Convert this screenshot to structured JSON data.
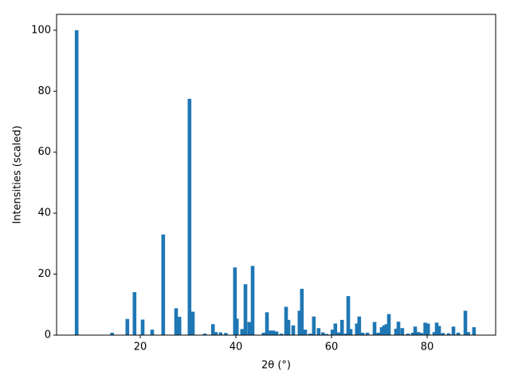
{
  "chart_data": {
    "type": "bar",
    "xlabel": "2θ (°)",
    "ylabel": "Intensities (scaled)",
    "color": "#1f77b4",
    "x": [
      6.7,
      14.1,
      17.3,
      18.8,
      20.5,
      22.5,
      24.8,
      27.5,
      28.2,
      30.3,
      31.0,
      33.5,
      35.2,
      35.8,
      36.8,
      37.9,
      39.8,
      40.2,
      41.3,
      42.0,
      42.8,
      43.5,
      45.8,
      46.5,
      47.2,
      47.8,
      48.5,
      49.5,
      50.5,
      51.0,
      52.0,
      53.3,
      53.8,
      54.5,
      55.5,
      56.3,
      57.3,
      58.2,
      59.0,
      60.2,
      60.8,
      61.5,
      62.2,
      63.0,
      63.5,
      64.0,
      65.3,
      65.8,
      66.5,
      67.5,
      69.0,
      69.8,
      70.5,
      71.0,
      71.5,
      72.0,
      73.5,
      74.0,
      74.8,
      76.0,
      77.0,
      77.5,
      78.2,
      78.8,
      79.6,
      80.2,
      81.5,
      82.0,
      82.5,
      83.3,
      84.5,
      85.5,
      86.5,
      88.0,
      88.6,
      89.8
    ],
    "values": [
      100,
      0.8,
      5.3,
      14.1,
      5.1,
      1.8,
      33,
      8.8,
      6,
      77.5,
      7.7,
      0.5,
      3.6,
      1,
      0.9,
      0.7,
      22.2,
      5.4,
      2,
      16.7,
      4.3,
      22.7,
      0.8,
      7.5,
      1.5,
      1.5,
      1.2,
      0.5,
      9.3,
      5,
      3.2,
      8,
      15.2,
      1.8,
      0.5,
      6.1,
      2.3,
      0.9,
      0.4,
      1.8,
      3.8,
      0.9,
      5,
      0.5,
      12.8,
      2,
      3.8,
      6.1,
      0.8,
      0.8,
      4.3,
      0.8,
      2.6,
      3.2,
      3.6,
      6.9,
      2.1,
      4.4,
      2.3,
      0.5,
      0.8,
      2.8,
      1,
      0.7,
      4.1,
      3.8,
      1,
      4.1,
      3,
      0.7,
      0.6,
      2.8,
      0.8,
      8,
      1,
      2.6
    ],
    "xlim": [
      2.5,
      94.33
    ],
    "ylim": [
      0,
      105.2
    ],
    "xticks": [
      20,
      40,
      60,
      80
    ],
    "yticks": [
      0,
      20,
      40,
      60,
      80,
      100
    ]
  }
}
